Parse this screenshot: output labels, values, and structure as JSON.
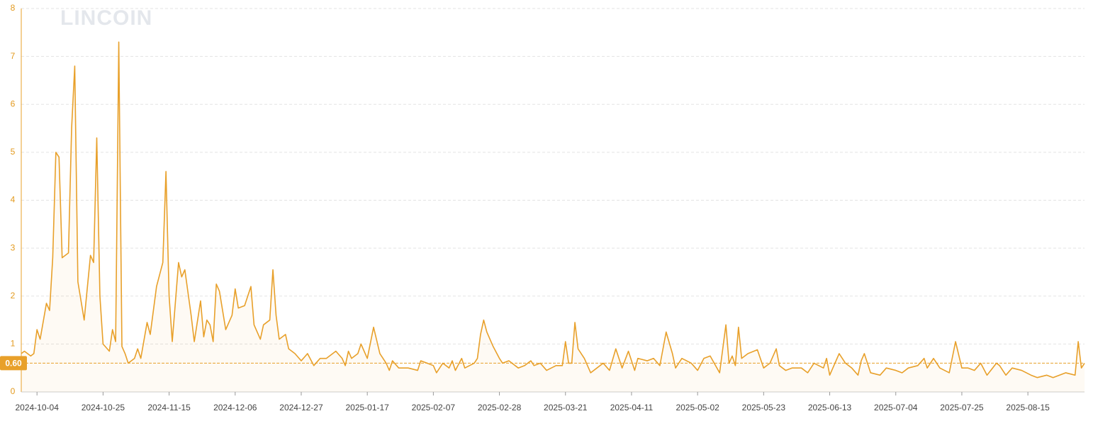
{
  "watermark": "LINCOIN",
  "chart_data": {
    "type": "line",
    "color": "#e8a02a",
    "grid": true,
    "xlim": [
      "2024-09-29",
      "2025-09-02"
    ],
    "xticks": [
      "2024-10-04",
      "2024-10-25",
      "2024-11-15",
      "2024-12-06",
      "2024-12-27",
      "2025-01-17",
      "2025-02-07",
      "2025-02-28",
      "2025-03-21",
      "2025-04-11",
      "2025-05-02",
      "2025-05-23",
      "2025-06-13",
      "2025-07-04",
      "2025-07-25",
      "2025-08-15"
    ],
    "ylim": [
      0,
      8
    ],
    "yticks": [
      0,
      1,
      2,
      3,
      4,
      5,
      6,
      7,
      8
    ],
    "reference_line": {
      "value": 0.6,
      "label": "0.60"
    },
    "x": [
      "2024-09-29",
      "2024-09-30",
      "2024-10-02",
      "2024-10-03",
      "2024-10-04",
      "2024-10-05",
      "2024-10-07",
      "2024-10-08",
      "2024-10-09",
      "2024-10-10",
      "2024-10-11",
      "2024-10-12",
      "2024-10-14",
      "2024-10-15",
      "2024-10-16",
      "2024-10-17",
      "2024-10-19",
      "2024-10-21",
      "2024-10-22",
      "2024-10-23",
      "2024-10-24",
      "2024-10-25",
      "2024-10-27",
      "2024-10-28",
      "2024-10-29",
      "2024-10-30",
      "2024-10-31",
      "2024-11-01",
      "2024-11-02",
      "2024-11-04",
      "2024-11-05",
      "2024-11-06",
      "2024-11-08",
      "2024-11-09",
      "2024-11-11",
      "2024-11-13",
      "2024-11-14",
      "2024-11-15",
      "2024-11-16",
      "2024-11-18",
      "2024-11-19",
      "2024-11-20",
      "2024-11-22",
      "2024-11-23",
      "2024-11-25",
      "2024-11-26",
      "2024-11-27",
      "2024-11-28",
      "2024-11-29",
      "2024-11-30",
      "2024-12-01",
      "2024-12-03",
      "2024-12-05",
      "2024-12-06",
      "2024-12-07",
      "2024-12-09",
      "2024-12-11",
      "2024-12-12",
      "2024-12-14",
      "2024-12-15",
      "2024-12-17",
      "2024-12-18",
      "2024-12-19",
      "2024-12-20",
      "2024-12-22",
      "2024-12-23",
      "2024-12-25",
      "2024-12-27",
      "2024-12-29",
      "2024-12-31",
      "2025-01-02",
      "2025-01-04",
      "2025-01-07",
      "2025-01-09",
      "2025-01-10",
      "2025-01-11",
      "2025-01-12",
      "2025-01-14",
      "2025-01-15",
      "2025-01-17",
      "2025-01-19",
      "2025-01-21",
      "2025-01-23",
      "2025-01-24",
      "2025-01-25",
      "2025-01-27",
      "2025-01-30",
      "2025-02-02",
      "2025-02-03",
      "2025-02-05",
      "2025-02-07",
      "2025-02-08",
      "2025-02-10",
      "2025-02-12",
      "2025-02-13",
      "2025-02-14",
      "2025-02-16",
      "2025-02-17",
      "2025-02-20",
      "2025-02-21",
      "2025-02-22",
      "2025-02-23",
      "2025-02-24",
      "2025-02-26",
      "2025-02-28",
      "2025-03-01",
      "2025-03-03",
      "2025-03-06",
      "2025-03-08",
      "2025-03-10",
      "2025-03-11",
      "2025-03-13",
      "2025-03-15",
      "2025-03-18",
      "2025-03-20",
      "2025-03-21",
      "2025-03-22",
      "2025-03-23",
      "2025-03-24",
      "2025-03-25",
      "2025-03-27",
      "2025-03-29",
      "2025-03-31",
      "2025-04-02",
      "2025-04-04",
      "2025-04-06",
      "2025-04-08",
      "2025-04-10",
      "2025-04-12",
      "2025-04-13",
      "2025-04-16",
      "2025-04-18",
      "2025-04-20",
      "2025-04-22",
      "2025-04-24",
      "2025-04-25",
      "2025-04-27",
      "2025-04-30",
      "2025-05-02",
      "2025-05-04",
      "2025-05-06",
      "2025-05-09",
      "2025-05-11",
      "2025-05-12",
      "2025-05-13",
      "2025-05-14",
      "2025-05-15",
      "2025-05-16",
      "2025-05-18",
      "2025-05-21",
      "2025-05-23",
      "2025-05-25",
      "2025-05-27",
      "2025-05-28",
      "2025-05-30",
      "2025-06-01",
      "2025-06-04",
      "2025-06-06",
      "2025-06-08",
      "2025-06-11",
      "2025-06-12",
      "2025-06-13",
      "2025-06-16",
      "2025-06-18",
      "2025-06-20",
      "2025-06-22",
      "2025-06-23",
      "2025-06-24",
      "2025-06-26",
      "2025-06-29",
      "2025-07-01",
      "2025-07-04",
      "2025-07-06",
      "2025-07-08",
      "2025-07-11",
      "2025-07-13",
      "2025-07-14",
      "2025-07-16",
      "2025-07-18",
      "2025-07-21",
      "2025-07-23",
      "2025-07-25",
      "2025-07-27",
      "2025-07-29",
      "2025-07-31",
      "2025-08-02",
      "2025-08-05",
      "2025-08-06",
      "2025-08-08",
      "2025-08-10",
      "2025-08-13",
      "2025-08-16",
      "2025-08-18",
      "2025-08-21",
      "2025-08-23",
      "2025-08-25",
      "2025-08-27",
      "2025-08-30",
      "2025-08-31",
      "2025-09-01",
      "2025-09-02"
    ],
    "values": [
      0.8,
      0.85,
      0.75,
      0.8,
      1.3,
      1.1,
      1.85,
      1.7,
      2.8,
      5.0,
      4.9,
      2.8,
      2.9,
      5.5,
      6.8,
      2.3,
      1.5,
      2.85,
      2.7,
      5.3,
      2.0,
      1.0,
      0.85,
      1.3,
      1.05,
      7.3,
      0.95,
      0.8,
      0.6,
      0.7,
      0.9,
      0.7,
      1.45,
      1.2,
      2.2,
      2.7,
      4.6,
      2.0,
      1.05,
      2.7,
      2.4,
      2.55,
      1.6,
      1.05,
      1.9,
      1.15,
      1.5,
      1.4,
      1.05,
      2.25,
      2.1,
      1.3,
      1.6,
      2.15,
      1.75,
      1.8,
      2.2,
      1.4,
      1.1,
      1.4,
      1.5,
      2.55,
      1.6,
      1.1,
      1.2,
      0.9,
      0.8,
      0.65,
      0.8,
      0.55,
      0.7,
      0.7,
      0.85,
      0.7,
      0.55,
      0.85,
      0.7,
      0.8,
      1.0,
      0.7,
      1.35,
      0.8,
      0.6,
      0.45,
      0.65,
      0.5,
      0.5,
      0.45,
      0.65,
      0.6,
      0.55,
      0.4,
      0.6,
      0.5,
      0.65,
      0.45,
      0.7,
      0.5,
      0.6,
      0.7,
      1.2,
      1.5,
      1.25,
      0.95,
      0.7,
      0.6,
      0.65,
      0.5,
      0.55,
      0.65,
      0.55,
      0.6,
      0.45,
      0.55,
      0.55,
      1.05,
      0.6,
      0.6,
      1.45,
      0.9,
      0.7,
      0.4,
      0.5,
      0.6,
      0.45,
      0.9,
      0.5,
      0.85,
      0.45,
      0.7,
      0.65,
      0.7,
      0.55,
      1.25,
      0.8,
      0.5,
      0.7,
      0.6,
      0.45,
      0.7,
      0.75,
      0.4,
      1.4,
      0.6,
      0.75,
      0.55,
      1.35,
      0.7,
      0.8,
      0.88,
      0.5,
      0.6,
      0.9,
      0.55,
      0.45,
      0.5,
      0.5,
      0.4,
      0.6,
      0.5,
      0.7,
      0.35,
      0.8,
      0.6,
      0.5,
      0.35,
      0.65,
      0.8,
      0.4,
      0.35,
      0.5,
      0.45,
      0.4,
      0.5,
      0.55,
      0.7,
      0.5,
      0.7,
      0.5,
      0.4,
      1.05,
      0.5,
      0.5,
      0.45,
      0.6,
      0.35,
      0.6,
      0.55,
      0.35,
      0.5,
      0.45,
      0.35,
      0.3,
      0.35,
      0.3,
      0.35,
      0.4,
      0.35,
      1.05,
      0.5,
      0.6
    ]
  }
}
